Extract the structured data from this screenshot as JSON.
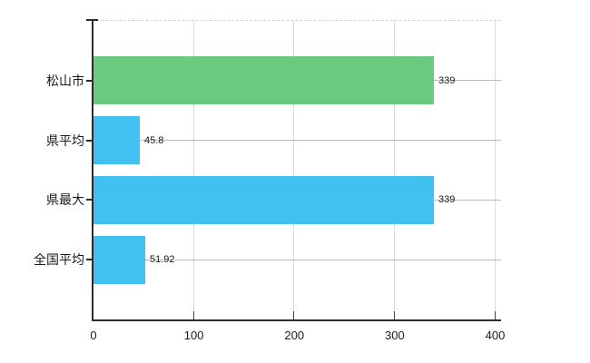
{
  "chart_data": {
    "type": "bar",
    "orientation": "horizontal",
    "title": "",
    "categories": [
      "松山市",
      "県平均",
      "県最大",
      "全国平均"
    ],
    "values": [
      339,
      45.8,
      339,
      51.92
    ],
    "value_labels": [
      "339",
      "45.8",
      "339",
      "51.92"
    ],
    "bar_colors": [
      "#6cca80",
      "#41c1f0",
      "#41c1f0",
      "#41c1f0"
    ],
    "xlabel": "",
    "ylabel": "",
    "xlim": [
      0,
      400
    ],
    "xticks": [
      0,
      100,
      200,
      300,
      400
    ],
    "xtick_labels": [
      "0",
      "100",
      "200",
      "300",
      "400"
    ],
    "grid": true,
    "legend": false
  },
  "colors": {
    "background": "#ffffff",
    "axis": "#2b2b2b",
    "tick": "#444444",
    "grid_vertical": "#d7dbd7",
    "grid_horizontal": "#b9bdb9",
    "top_border": "#cfcfcf",
    "text": "#1a1a1a",
    "bar_green": "#6cca80",
    "bar_blue": "#41c1f0"
  }
}
